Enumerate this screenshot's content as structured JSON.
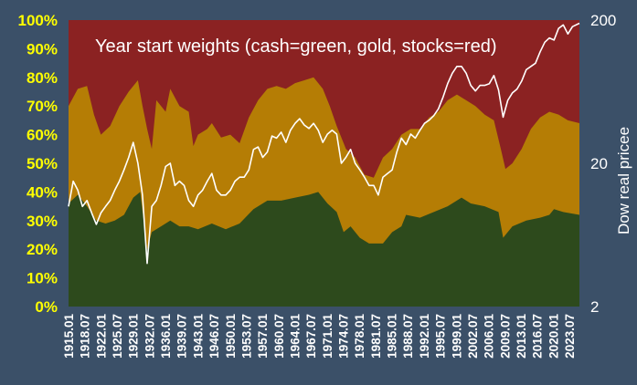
{
  "chart_data": {
    "type": "area",
    "title": "Year start weights (cash=green, gold, stocks=red)",
    "ylabel_right": "Dow real pricee",
    "y_left": {
      "range": [
        0,
        100
      ],
      "ticks": [
        "0%",
        "10%",
        "20%",
        "30%",
        "40%",
        "50%",
        "60%",
        "70%",
        "80%",
        "90%",
        "100%"
      ]
    },
    "y_right": {
      "scale": "log",
      "range": [
        2,
        200
      ],
      "ticks": [
        "2",
        "20",
        "200"
      ]
    },
    "x_range": [
      1915.0,
      2025.5
    ],
    "x_ticks": [
      "1915.01",
      "1918.07",
      "1922.01",
      "1925.07",
      "1929.01",
      "1932.07",
      "1936.01",
      "1939.07",
      "1943.01",
      "1946.07",
      "1950.01",
      "1953.07",
      "1957.01",
      "1960.07",
      "1964.01",
      "1967.07",
      "1971.01",
      "1974.07",
      "1978.01",
      "1981.07",
      "1985.01",
      "1988.07",
      "1992.01",
      "1995.07",
      "1999.01",
      "2002.07",
      "2006.01",
      "2009.07",
      "2013.01",
      "2016.07",
      "2020.01",
      "2023.07"
    ],
    "series": [
      {
        "name": "cash",
        "color": "#2d4a1c",
        "points": [
          [
            1915,
            36
          ],
          [
            1917,
            39
          ],
          [
            1919,
            35
          ],
          [
            1921,
            30
          ],
          [
            1923,
            29
          ],
          [
            1925,
            30
          ],
          [
            1927,
            32
          ],
          [
            1929,
            38
          ],
          [
            1930.5,
            40
          ],
          [
            1932,
            20
          ],
          [
            1933,
            26
          ],
          [
            1935,
            28
          ],
          [
            1937,
            30
          ],
          [
            1939,
            28
          ],
          [
            1941,
            28
          ],
          [
            1943,
            27
          ],
          [
            1946,
            29
          ],
          [
            1949,
            27
          ],
          [
            1952,
            29
          ],
          [
            1955,
            34
          ],
          [
            1958,
            37
          ],
          [
            1961,
            37
          ],
          [
            1964,
            38
          ],
          [
            1967,
            39
          ],
          [
            1969,
            40
          ],
          [
            1971,
            36
          ],
          [
            1973,
            33
          ],
          [
            1974.5,
            26
          ],
          [
            1976,
            28
          ],
          [
            1978,
            24
          ],
          [
            1980,
            22
          ],
          [
            1983,
            22
          ],
          [
            1985,
            26
          ],
          [
            1987,
            28
          ],
          [
            1988,
            32
          ],
          [
            1991,
            31
          ],
          [
            1994,
            33
          ],
          [
            1997,
            35
          ],
          [
            2000,
            38
          ],
          [
            2002,
            36
          ],
          [
            2005,
            35
          ],
          [
            2008,
            33
          ],
          [
            2009,
            24
          ],
          [
            2011,
            28
          ],
          [
            2014,
            30
          ],
          [
            2017,
            31
          ],
          [
            2019,
            32
          ],
          [
            2020,
            34
          ],
          [
            2022,
            33
          ],
          [
            2025.5,
            32
          ]
        ]
      },
      {
        "name": "gold",
        "color": "#b57d05",
        "points": [
          [
            1915,
            70
          ],
          [
            1917,
            76
          ],
          [
            1919,
            77
          ],
          [
            1920.5,
            67
          ],
          [
            1922,
            60
          ],
          [
            1924,
            63
          ],
          [
            1926,
            70
          ],
          [
            1928,
            75
          ],
          [
            1930,
            79
          ],
          [
            1931,
            70
          ],
          [
            1932,
            62
          ],
          [
            1933,
            55
          ],
          [
            1934,
            72
          ],
          [
            1936,
            68
          ],
          [
            1937,
            76
          ],
          [
            1939,
            70
          ],
          [
            1941,
            68
          ],
          [
            1942,
            56
          ],
          [
            1943,
            60
          ],
          [
            1945,
            62
          ],
          [
            1946,
            64
          ],
          [
            1948,
            59
          ],
          [
            1950,
            60
          ],
          [
            1952,
            57
          ],
          [
            1954,
            66
          ],
          [
            1956,
            72
          ],
          [
            1958,
            76
          ],
          [
            1960,
            77
          ],
          [
            1962,
            76
          ],
          [
            1964,
            78
          ],
          [
            1966,
            79
          ],
          [
            1968,
            80
          ],
          [
            1970,
            76
          ],
          [
            1971.5,
            70
          ],
          [
            1973,
            63
          ],
          [
            1975,
            55
          ],
          [
            1977,
            52
          ],
          [
            1979,
            46
          ],
          [
            1981,
            45
          ],
          [
            1983,
            52
          ],
          [
            1985,
            55
          ],
          [
            1987,
            60
          ],
          [
            1989,
            62
          ],
          [
            1991,
            62
          ],
          [
            1993,
            66
          ],
          [
            1995,
            68
          ],
          [
            1997,
            72
          ],
          [
            1999,
            74
          ],
          [
            2001,
            72
          ],
          [
            2003,
            70
          ],
          [
            2005,
            67
          ],
          [
            2007,
            65
          ],
          [
            2008.5,
            55
          ],
          [
            2009.5,
            48
          ],
          [
            2011,
            50
          ],
          [
            2013,
            55
          ],
          [
            2015,
            62
          ],
          [
            2017,
            66
          ],
          [
            2019,
            68
          ],
          [
            2021,
            67
          ],
          [
            2023,
            65
          ],
          [
            2025.5,
            64
          ]
        ]
      },
      {
        "name": "stocks",
        "color": "#8b2222",
        "points": [
          [
            1915,
            100
          ],
          [
            2025.5,
            100
          ]
        ]
      },
      {
        "name": "Dow real price",
        "color": "#ffffff",
        "points": [
          [
            1915,
            10
          ],
          [
            1916,
            15
          ],
          [
            1917,
            13
          ],
          [
            1918,
            10
          ],
          [
            1919,
            11
          ],
          [
            1920,
            9
          ],
          [
            1921,
            7.5
          ],
          [
            1922,
            9
          ],
          [
            1923,
            10
          ],
          [
            1924,
            11
          ],
          [
            1925,
            13
          ],
          [
            1926,
            15
          ],
          [
            1927,
            18
          ],
          [
            1928,
            22
          ],
          [
            1929,
            28
          ],
          [
            1930,
            20
          ],
          [
            1931,
            12
          ],
          [
            1932,
            4
          ],
          [
            1933,
            10
          ],
          [
            1934,
            11
          ],
          [
            1935,
            14
          ],
          [
            1936,
            19
          ],
          [
            1937,
            20
          ],
          [
            1938,
            14
          ],
          [
            1939,
            15
          ],
          [
            1940,
            14
          ],
          [
            1941,
            11
          ],
          [
            1942,
            10
          ],
          [
            1943,
            12
          ],
          [
            1944,
            13
          ],
          [
            1945,
            15
          ],
          [
            1946,
            17
          ],
          [
            1947,
            13
          ],
          [
            1948,
            12
          ],
          [
            1949,
            12
          ],
          [
            1950,
            13
          ],
          [
            1951,
            15
          ],
          [
            1952,
            16
          ],
          [
            1953,
            16
          ],
          [
            1954,
            18
          ],
          [
            1955,
            25
          ],
          [
            1956,
            26
          ],
          [
            1957,
            22
          ],
          [
            1958,
            24
          ],
          [
            1959,
            31
          ],
          [
            1960,
            30
          ],
          [
            1961,
            33
          ],
          [
            1962,
            28
          ],
          [
            1963,
            34
          ],
          [
            1964,
            38
          ],
          [
            1965,
            41
          ],
          [
            1966,
            37
          ],
          [
            1967,
            35
          ],
          [
            1968,
            38
          ],
          [
            1969,
            34
          ],
          [
            1970,
            28
          ],
          [
            1971,
            32
          ],
          [
            1972,
            34
          ],
          [
            1973,
            32
          ],
          [
            1974,
            20
          ],
          [
            1975,
            22
          ],
          [
            1976,
            25
          ],
          [
            1977,
            20
          ],
          [
            1978,
            18
          ],
          [
            1979,
            16
          ],
          [
            1980,
            14
          ],
          [
            1981,
            14
          ],
          [
            1982,
            12
          ],
          [
            1983,
            16
          ],
          [
            1984,
            17
          ],
          [
            1985,
            18
          ],
          [
            1986,
            24
          ],
          [
            1987,
            30
          ],
          [
            1988,
            27
          ],
          [
            1989,
            32
          ],
          [
            1990,
            30
          ],
          [
            1991,
            34
          ],
          [
            1992,
            38
          ],
          [
            1993,
            40
          ],
          [
            1994,
            43
          ],
          [
            1995,
            48
          ],
          [
            1996,
            58
          ],
          [
            1997,
            72
          ],
          [
            1998,
            85
          ],
          [
            1999,
            95
          ],
          [
            2000,
            95
          ],
          [
            2001,
            85
          ],
          [
            2002,
            70
          ],
          [
            2003,
            64
          ],
          [
            2004,
            70
          ],
          [
            2005,
            70
          ],
          [
            2006,
            72
          ],
          [
            2007,
            82
          ],
          [
            2008,
            65
          ],
          [
            2009,
            42
          ],
          [
            2010,
            55
          ],
          [
            2011,
            62
          ],
          [
            2012,
            66
          ],
          [
            2013,
            75
          ],
          [
            2014,
            90
          ],
          [
            2015,
            95
          ],
          [
            2016,
            100
          ],
          [
            2017,
            120
          ],
          [
            2018,
            140
          ],
          [
            2019,
            150
          ],
          [
            2020,
            145
          ],
          [
            2021,
            175
          ],
          [
            2022,
            185
          ],
          [
            2023,
            160
          ],
          [
            2024,
            180
          ],
          [
            2025.5,
            190
          ]
        ]
      }
    ]
  }
}
